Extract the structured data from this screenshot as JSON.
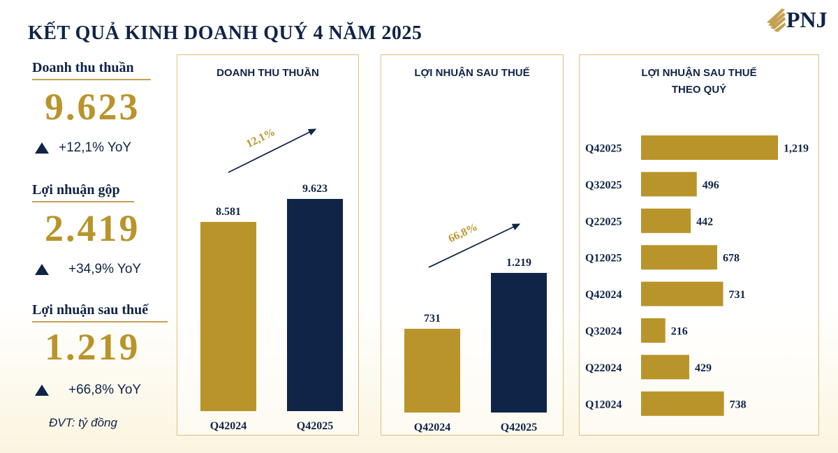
{
  "title": "KẾT QUẢ KINH DOANH QUÝ 4 NĂM 2025",
  "logo": {
    "text": "PNJ"
  },
  "kpis": [
    {
      "label": "Doanh thu thuần",
      "value": "9.623",
      "yoy": "+12,1% YoY"
    },
    {
      "label": "Lợi nhuận gộp",
      "value": "2.419",
      "yoy": "+34,9% YoY"
    },
    {
      "label": "Lợi nhuận sau thuế",
      "value": "1.219",
      "yoy": "+66,8% YoY"
    }
  ],
  "unit_note": "ĐVT: tỷ đồng",
  "colors": {
    "navy": "#0f2447",
    "gold": "#b8942a",
    "gold_light": "#c4a254",
    "border": "#d9c27e"
  },
  "chart_data": [
    {
      "type": "bar",
      "title": "DOANH THU THUẦN",
      "categories": [
        "Q42024",
        "Q42025"
      ],
      "values": [
        8581,
        9623
      ],
      "value_labels": [
        "8.581",
        "9.623"
      ],
      "growth_label": "12,1%",
      "ylim": [
        0,
        9623
      ]
    },
    {
      "type": "bar",
      "title": "LỢI NHUẬN SAU THUẾ",
      "categories": [
        "Q42024",
        "Q42025"
      ],
      "values": [
        731,
        1219
      ],
      "value_labels": [
        "731",
        "1.219"
      ],
      "growth_label": "66,8%",
      "ylim": [
        0,
        1219
      ]
    },
    {
      "type": "bar",
      "orientation": "horizontal",
      "title_lines": [
        "LỢI NHUẬN SAU THUẾ",
        "THEO QUÝ"
      ],
      "categories": [
        "Q42025",
        "Q32025",
        "Q22025",
        "Q12025",
        "Q42024",
        "Q32024",
        "Q22024",
        "Q12024"
      ],
      "values": [
        1219,
        496,
        442,
        678,
        731,
        216,
        429,
        738
      ],
      "value_labels": [
        "1,219",
        "496",
        "442",
        "678",
        "731",
        "216",
        "429",
        "738"
      ],
      "xlim": [
        0,
        1219
      ]
    }
  ]
}
